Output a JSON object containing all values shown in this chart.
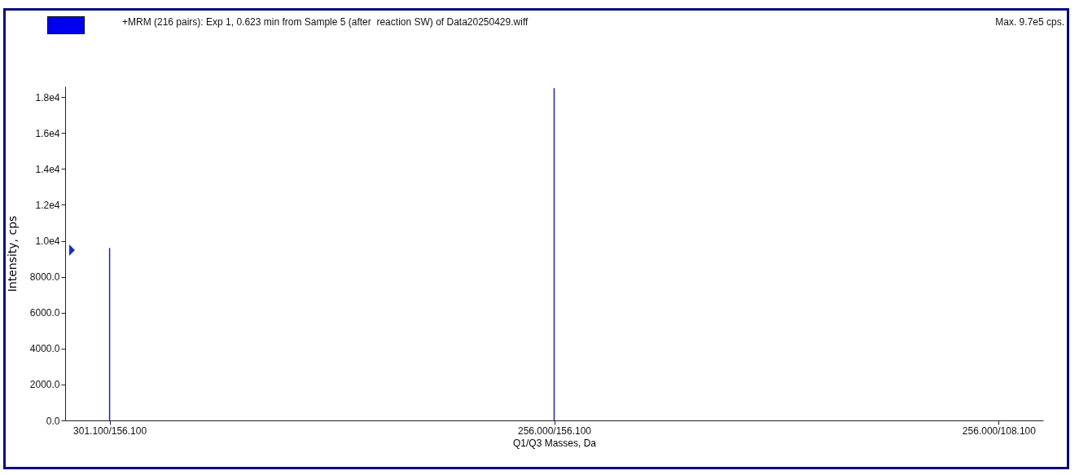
{
  "chart_data": {
    "type": "bar",
    "title": "+MRM (216 pairs): Exp 1, 0.623 min from Sample 5 (after  reaction SW) of Data20250429.wiff",
    "annotations": [
      "Max. 9.7e5 cps."
    ],
    "xlabel": "Q1/Q3 Masses, Da",
    "ylabel": "Intensity, cps",
    "categories": [
      "301.100/156.100",
      "256.000/156.100",
      "256.000/108.100"
    ],
    "values": [
      9600,
      18500,
      0
    ],
    "color": "#2323a8",
    "ylim": [
      0,
      18600
    ],
    "yticks": [
      {
        "value": 0,
        "label": "0.0"
      },
      {
        "value": 2000,
        "label": "2000.0"
      },
      {
        "value": 4000,
        "label": "4000.0"
      },
      {
        "value": 6000,
        "label": "6000.0"
      },
      {
        "value": 8000,
        "label": "8000.0"
      },
      {
        "value": 10000,
        "label": "1.0e4"
      },
      {
        "value": 12000,
        "label": "1.2e4"
      },
      {
        "value": 14000,
        "label": "1.4e4"
      },
      {
        "value": 16000,
        "label": "1.6e4"
      },
      {
        "value": 18000,
        "label": "1.8e4"
      }
    ],
    "grid": false
  }
}
